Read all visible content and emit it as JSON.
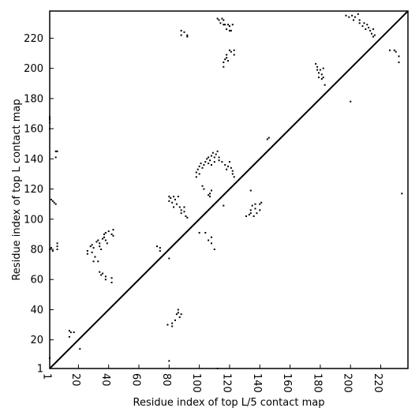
{
  "chart_data": {
    "type": "scatter",
    "title": "",
    "xlabel": "Residue index of top L/5 contact map",
    "ylabel": "Residue index of top L contact map",
    "xlim": [
      1,
      238
    ],
    "ylim": [
      1,
      238
    ],
    "xticks": [
      1,
      20,
      40,
      60,
      80,
      100,
      120,
      140,
      160,
      180,
      200,
      220
    ],
    "yticks": [
      1,
      20,
      40,
      60,
      80,
      100,
      120,
      140,
      160,
      180,
      200,
      220
    ],
    "grid": false,
    "diagonal": {
      "from": [
        1,
        1
      ],
      "to": [
        238,
        238
      ],
      "color": "#000000"
    },
    "marker": {
      "shape": "square",
      "color": "#000000"
    },
    "series": [
      {
        "points": [
          [
            1,
            166
          ],
          [
            1,
            167
          ],
          [
            1,
            168
          ],
          [
            1,
            164
          ],
          [
            1,
            160
          ],
          [
            1,
            8
          ],
          [
            2,
            113
          ],
          [
            3,
            112
          ],
          [
            4,
            111
          ],
          [
            5,
            110
          ],
          [
            5,
            145
          ],
          [
            6,
            145
          ],
          [
            5,
            141
          ],
          [
            1,
            80
          ],
          [
            2,
            81
          ],
          [
            3,
            79
          ],
          [
            6,
            82
          ],
          [
            6,
            84
          ],
          [
            6,
            80
          ],
          [
            14,
            26
          ],
          [
            15,
            25
          ],
          [
            17,
            25
          ],
          [
            14,
            22
          ],
          [
            21,
            14
          ],
          [
            26,
            79
          ],
          [
            26,
            77
          ],
          [
            28,
            82
          ],
          [
            29,
            83
          ],
          [
            30,
            81
          ],
          [
            29,
            78
          ],
          [
            31,
            75
          ],
          [
            30,
            72
          ],
          [
            32,
            85
          ],
          [
            33,
            86
          ],
          [
            34,
            84
          ],
          [
            34,
            82
          ],
          [
            35,
            80
          ],
          [
            36,
            87
          ],
          [
            37,
            88
          ],
          [
            38,
            86
          ],
          [
            37,
            90
          ],
          [
            38,
            91
          ],
          [
            40,
            92
          ],
          [
            42,
            90
          ],
          [
            43,
            93
          ],
          [
            43,
            89
          ],
          [
            39,
            84
          ],
          [
            33,
            72
          ],
          [
            34,
            65
          ],
          [
            35,
            63
          ],
          [
            38,
            62
          ],
          [
            38,
            60
          ],
          [
            42,
            58
          ],
          [
            42,
            61
          ],
          [
            36,
            64
          ],
          [
            72,
            82
          ],
          [
            74,
            81
          ],
          [
            74,
            79
          ],
          [
            80,
            115
          ],
          [
            81,
            114
          ],
          [
            80,
            112
          ],
          [
            82,
            111
          ],
          [
            83,
            115
          ],
          [
            84,
            113
          ],
          [
            85,
            110
          ],
          [
            83,
            108
          ],
          [
            86,
            115
          ],
          [
            87,
            108
          ],
          [
            88,
            106
          ],
          [
            88,
            104
          ],
          [
            90,
            105
          ],
          [
            90,
            108
          ],
          [
            91,
            102
          ],
          [
            92,
            101
          ],
          [
            80,
            74
          ],
          [
            79,
            30
          ],
          [
            82,
            31
          ],
          [
            82,
            29
          ],
          [
            84,
            33
          ],
          [
            85,
            37
          ],
          [
            86,
            38
          ],
          [
            86,
            40
          ],
          [
            88,
            37
          ],
          [
            87,
            35
          ],
          [
            80,
            6
          ],
          [
            88,
            225
          ],
          [
            88,
            222
          ],
          [
            90,
            224
          ],
          [
            92,
            222
          ],
          [
            92,
            221
          ],
          [
            98,
            128
          ],
          [
            98,
            131
          ],
          [
            99,
            133
          ],
          [
            100,
            130
          ],
          [
            100,
            135
          ],
          [
            101,
            137
          ],
          [
            102,
            134
          ],
          [
            103,
            136
          ],
          [
            104,
            138
          ],
          [
            105,
            140
          ],
          [
            106,
            137
          ],
          [
            106,
            141
          ],
          [
            107,
            139
          ],
          [
            108,
            136
          ],
          [
            108,
            142
          ],
          [
            109,
            144
          ],
          [
            110,
            138
          ],
          [
            110,
            141
          ],
          [
            111,
            143
          ],
          [
            112,
            145
          ],
          [
            113,
            139
          ],
          [
            113,
            141
          ],
          [
            102,
            122
          ],
          [
            103,
            120
          ],
          [
            106,
            116
          ],
          [
            107,
            117
          ],
          [
            107,
            115
          ],
          [
            108,
            119
          ],
          [
            100,
            91
          ],
          [
            104,
            91
          ],
          [
            106,
            86
          ],
          [
            108,
            88
          ],
          [
            108,
            84
          ],
          [
            110,
            80
          ],
          [
            112,
            233
          ],
          [
            113,
            232
          ],
          [
            114,
            230
          ],
          [
            115,
            233
          ],
          [
            116,
            232
          ],
          [
            116,
            229
          ],
          [
            117,
            229
          ],
          [
            118,
            226
          ],
          [
            119,
            229
          ],
          [
            120,
            228
          ],
          [
            120,
            225
          ],
          [
            121,
            225
          ],
          [
            122,
            229
          ],
          [
            116,
            204
          ],
          [
            117,
            206
          ],
          [
            118,
            209
          ],
          [
            118,
            207
          ],
          [
            119,
            205
          ],
          [
            120,
            212
          ],
          [
            121,
            211
          ],
          [
            123,
            212
          ],
          [
            123,
            209
          ],
          [
            116,
            201
          ],
          [
            115,
            138
          ],
          [
            117,
            136
          ],
          [
            118,
            133
          ],
          [
            119,
            135
          ],
          [
            120,
            138
          ],
          [
            121,
            134
          ],
          [
            122,
            132
          ],
          [
            122,
            130
          ],
          [
            123,
            128
          ],
          [
            116,
            109
          ],
          [
            112,
            1
          ],
          [
            131,
            102
          ],
          [
            133,
            103
          ],
          [
            134,
            106
          ],
          [
            134,
            104
          ],
          [
            135,
            109
          ],
          [
            136,
            102
          ],
          [
            137,
            110
          ],
          [
            137,
            107
          ],
          [
            138,
            104
          ],
          [
            140,
            106
          ],
          [
            140,
            110
          ],
          [
            141,
            111
          ],
          [
            134,
            119
          ],
          [
            145,
            153
          ],
          [
            146,
            154
          ],
          [
            177,
            203
          ],
          [
            178,
            201
          ],
          [
            178,
            199
          ],
          [
            179,
            197
          ],
          [
            179,
            194
          ],
          [
            180,
            199
          ],
          [
            181,
            196
          ],
          [
            182,
            200
          ],
          [
            182,
            194
          ],
          [
            181,
            193
          ],
          [
            183,
            189
          ],
          [
            197,
            235
          ],
          [
            199,
            234
          ],
          [
            201,
            235
          ],
          [
            202,
            232
          ],
          [
            203,
            234
          ],
          [
            205,
            236
          ],
          [
            206,
            232
          ],
          [
            206,
            230
          ],
          [
            208,
            228
          ],
          [
            209,
            230
          ],
          [
            210,
            226
          ],
          [
            211,
            229
          ],
          [
            212,
            227
          ],
          [
            213,
            225
          ],
          [
            214,
            223
          ],
          [
            215,
            221
          ],
          [
            215,
            226
          ],
          [
            216,
            222
          ],
          [
            200,
            178
          ],
          [
            226,
            212
          ],
          [
            229,
            212
          ],
          [
            230,
            211
          ],
          [
            232,
            204
          ],
          [
            232,
            208
          ],
          [
            234,
            117
          ]
        ]
      }
    ]
  }
}
